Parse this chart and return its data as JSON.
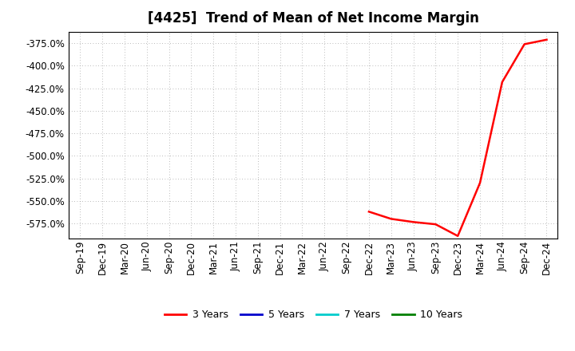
{
  "title": "[4425]  Trend of Mean of Net Income Margin",
  "background_color": "#ffffff",
  "plot_bg_color": "#ffffff",
  "grid_color": "#999999",
  "x_labels": [
    "Sep-19",
    "Dec-19",
    "Mar-20",
    "Jun-20",
    "Sep-20",
    "Dec-20",
    "Mar-21",
    "Jun-21",
    "Sep-21",
    "Dec-21",
    "Mar-22",
    "Jun-22",
    "Sep-22",
    "Dec-22",
    "Mar-23",
    "Jun-23",
    "Sep-23",
    "Dec-23",
    "Mar-24",
    "Jun-24",
    "Sep-24",
    "Dec-24"
  ],
  "y_ticks": [
    -375.0,
    -400.0,
    -425.0,
    -450.0,
    -475.0,
    -500.0,
    -525.0,
    -550.0,
    -575.0
  ],
  "ylim": [
    -592,
    -362
  ],
  "series": {
    "3 Years": {
      "color": "#ff0000",
      "data_x": [
        "Dec-22",
        "Mar-23",
        "Jun-23",
        "Sep-23",
        "Dec-23",
        "Mar-24",
        "Jun-24",
        "Sep-24",
        "Dec-24"
      ],
      "data_y": [
        -562.0,
        -570.0,
        -573.5,
        -576.0,
        -589.0,
        -530.0,
        -418.0,
        -376.0,
        -371.0
      ]
    },
    "5 Years": {
      "color": "#0000cc",
      "data_x": [],
      "data_y": []
    },
    "7 Years": {
      "color": "#00cccc",
      "data_x": [],
      "data_y": []
    },
    "10 Years": {
      "color": "#008000",
      "data_x": [],
      "data_y": []
    }
  },
  "legend_labels": [
    "3 Years",
    "5 Years",
    "7 Years",
    "10 Years"
  ],
  "legend_colors": [
    "#ff0000",
    "#0000cc",
    "#00cccc",
    "#008000"
  ],
  "title_fontsize": 12,
  "tick_fontsize": 8.5,
  "legend_fontsize": 9
}
